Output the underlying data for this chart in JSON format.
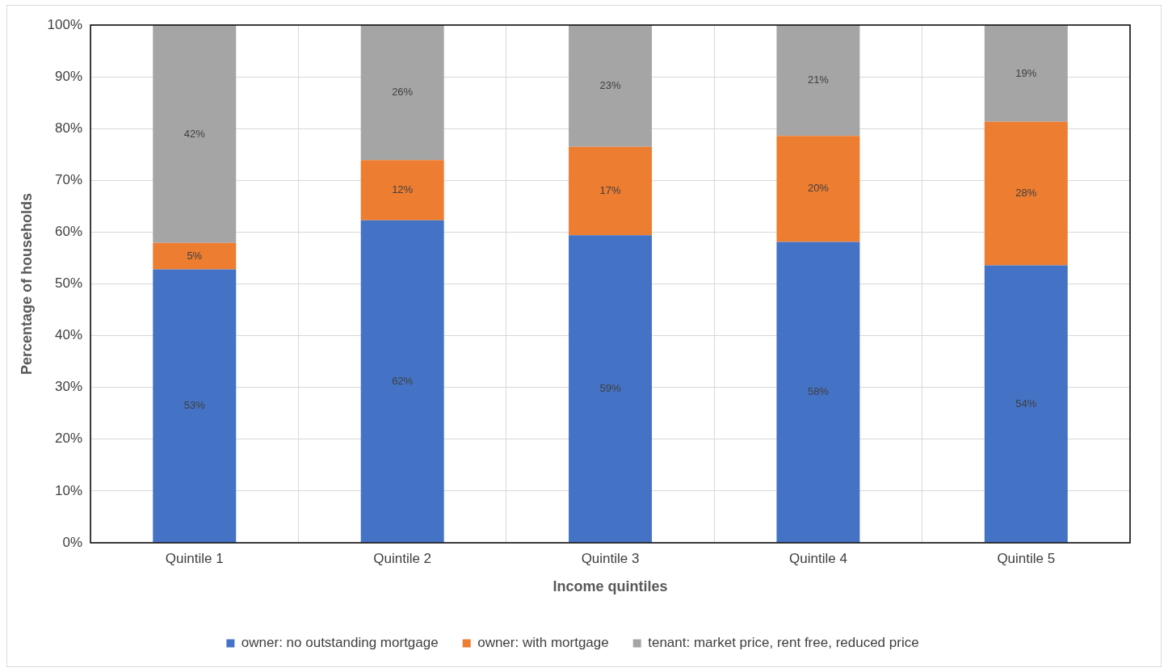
{
  "chart_data": {
    "type": "bar",
    "stacked": true,
    "xlabel": "Income quintiles",
    "ylabel": "Percentage of households",
    "categories": [
      "Quintile 1",
      "Quintile 2",
      "Quintile 3",
      "Quintile 4",
      "Quintile 5"
    ],
    "series": [
      {
        "name": "owner: no outstanding mortgage",
        "color": "#4472c4",
        "values": [
          52.8,
          62.3,
          59.4,
          58.1,
          53.6
        ],
        "value_labels": [
          "53%",
          "62%",
          "59%",
          "58%",
          "54%"
        ]
      },
      {
        "name": "owner: with mortgage",
        "color": "#ed7d31",
        "values": [
          5.1,
          11.6,
          17.1,
          20.5,
          27.7
        ],
        "value_labels": [
          "5%",
          "12%",
          "17%",
          "20%",
          "28%"
        ]
      },
      {
        "name": "tenant: market price, rent free, reduced price",
        "color": "#a5a5a5",
        "values": [
          42.1,
          26.1,
          23.5,
          21.4,
          18.7
        ],
        "value_labels": [
          "42%",
          "26%",
          "23%",
          "21%",
          "19%"
        ]
      }
    ],
    "ylim": [
      0,
      100
    ],
    "yticks": [
      {
        "value": 0,
        "label": "0%"
      },
      {
        "value": 10,
        "label": "10%"
      },
      {
        "value": 20,
        "label": "20%"
      },
      {
        "value": 30,
        "label": "30%"
      },
      {
        "value": 40,
        "label": "40%"
      },
      {
        "value": 50,
        "label": "50%"
      },
      {
        "value": 60,
        "label": "60%"
      },
      {
        "value": 70,
        "label": "70%"
      },
      {
        "value": 80,
        "label": "80%"
      },
      {
        "value": 90,
        "label": "90%"
      },
      {
        "value": 100,
        "label": "100%"
      }
    ],
    "grid": true,
    "legend": "bottom"
  }
}
